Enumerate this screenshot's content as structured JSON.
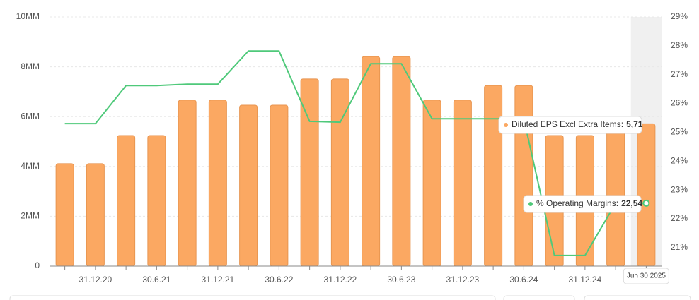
{
  "chart_data": {
    "type": "bar_line",
    "categories": [
      null,
      "31.12.20",
      null,
      "30.6.21",
      null,
      "31.12.21",
      null,
      "30.6.22",
      null,
      "31.12.22",
      null,
      "30.6.23",
      null,
      "31.12.23",
      null,
      "30.6.24",
      null,
      "31.12.24",
      null,
      null
    ],
    "series": [
      {
        "name": "Diluted EPS Excl Extra Items",
        "type": "bar",
        "color": "#fba862",
        "axis": "y",
        "values": [
          4.11,
          4.11,
          5.24,
          5.24,
          6.66,
          6.66,
          6.46,
          6.46,
          7.51,
          7.51,
          8.41,
          8.41,
          6.66,
          6.66,
          7.25,
          7.25,
          5.24,
          5.24,
          5.71,
          5.71
        ]
      },
      {
        "name": "% Operating Margins",
        "type": "line",
        "color": "#4fc97a",
        "axis": "y2",
        "values": [
          25.3,
          25.3,
          26.62,
          26.62,
          26.67,
          26.67,
          27.82,
          27.82,
          25.38,
          25.35,
          27.38,
          27.38,
          25.47,
          25.47,
          25.47,
          25.47,
          20.73,
          20.73,
          22.54,
          22.54
        ]
      }
    ],
    "ylim": [
      0,
      10
    ],
    "yticks": [
      0,
      {
        "value": 2,
        "label": "2MM"
      },
      {
        "value": 4,
        "label": "4MM"
      },
      {
        "value": 6,
        "label": "6MM"
      },
      {
        "value": 8,
        "label": "8MM"
      },
      {
        "value": 10,
        "label": "10MM"
      }
    ],
    "y2lim": [
      20.36,
      29
    ],
    "y2ticks": [
      {
        "value": 21,
        "label": "21%"
      },
      {
        "value": 22,
        "label": "22%"
      },
      {
        "value": 23,
        "label": "23%"
      },
      {
        "value": 24,
        "label": "24%"
      },
      {
        "value": 25,
        "label": "25%"
      },
      {
        "value": 26,
        "label": "26%"
      },
      {
        "value": 27,
        "label": "27%"
      },
      {
        "value": 28,
        "label": "28%"
      },
      {
        "value": 29,
        "label": "29%"
      }
    ],
    "grid": true,
    "tooltip": {
      "date": "Jun 30 2025",
      "bar_label": "Diluted EPS Excl Extra Items:",
      "bar_value": "5,71",
      "line_label": "% Operating Margins:",
      "line_value": "22,54"
    }
  }
}
